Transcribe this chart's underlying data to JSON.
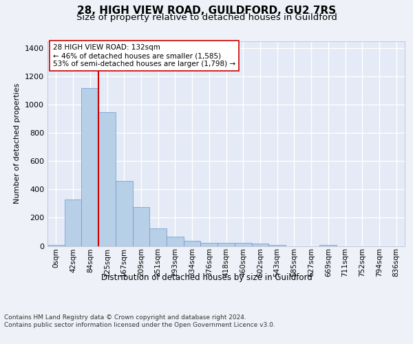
{
  "title_line1": "28, HIGH VIEW ROAD, GUILDFORD, GU2 7RS",
  "title_line2": "Size of property relative to detached houses in Guildford",
  "xlabel": "Distribution of detached houses by size in Guildford",
  "ylabel": "Number of detached properties",
  "categories": [
    "0sqm",
    "42sqm",
    "84sqm",
    "125sqm",
    "167sqm",
    "209sqm",
    "251sqm",
    "293sqm",
    "334sqm",
    "376sqm",
    "418sqm",
    "460sqm",
    "502sqm",
    "543sqm",
    "585sqm",
    "627sqm",
    "669sqm",
    "711sqm",
    "752sqm",
    "794sqm",
    "836sqm"
  ],
  "values": [
    5,
    330,
    1120,
    950,
    460,
    275,
    125,
    65,
    35,
    20,
    20,
    20,
    15,
    5,
    0,
    0,
    5,
    0,
    0,
    0,
    0
  ],
  "bar_color": "#b8cfe8",
  "bar_edge_color": "#6699cc",
  "vline_color": "#cc0000",
  "annotation_text": "28 HIGH VIEW ROAD: 132sqm\n← 46% of detached houses are smaller (1,585)\n53% of semi-detached houses are larger (1,798) →",
  "annotation_box_color": "#ffffff",
  "annotation_box_edge": "#cc0000",
  "ylim": [
    0,
    1450
  ],
  "yticks": [
    0,
    200,
    400,
    600,
    800,
    1000,
    1200,
    1400
  ],
  "footer_text": "Contains HM Land Registry data © Crown copyright and database right 2024.\nContains public sector information licensed under the Open Government Licence v3.0.",
  "bg_color": "#eef2f8",
  "plot_bg_color": "#e4eaf6",
  "grid_color": "#ffffff",
  "title1_fontsize": 11,
  "title2_fontsize": 9.5,
  "vline_bin": 2.5
}
